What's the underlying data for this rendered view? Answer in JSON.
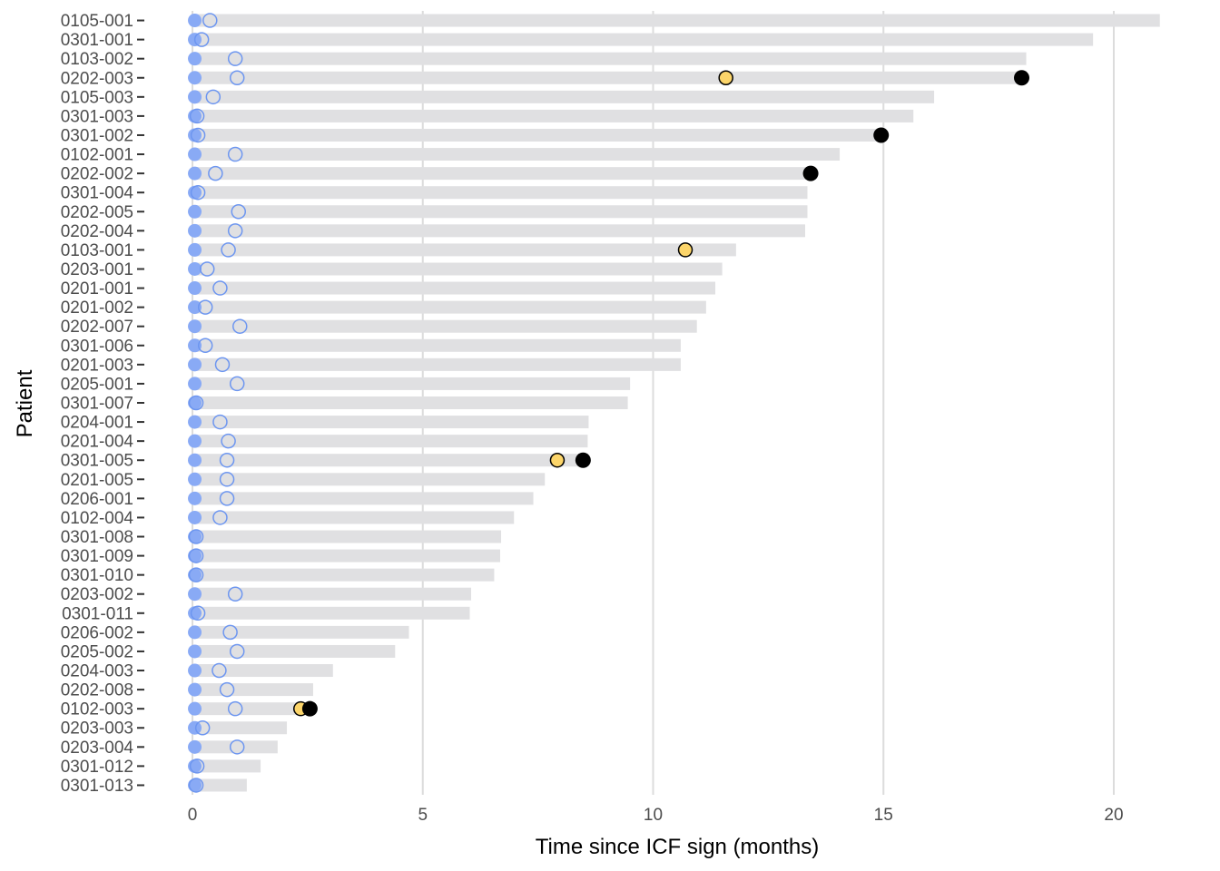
{
  "chart_data": {
    "type": "scatter",
    "xlabel": "Time since ICF sign (months)",
    "ylabel": "Patient",
    "xlim": [
      -1.5,
      22
    ],
    "xticks": [
      0,
      5,
      10,
      15,
      20
    ],
    "grid": "vertical",
    "legend": "none",
    "colors": {
      "bar": "#e0e0e2",
      "grid": "#dcdcdc",
      "start_marker": "#89aaf5",
      "hollow_marker": "#6d96f0",
      "yellow_marker": "#fcd56a",
      "black_marker": "#000000"
    },
    "patients": [
      {
        "id": "0105-001",
        "bar_end": 21.0,
        "start": 0.05,
        "hollow": 0.38,
        "yellow": null,
        "black": null
      },
      {
        "id": "0301-001",
        "bar_end": 19.55,
        "start": 0.05,
        "hollow": 0.2,
        "yellow": null,
        "black": null
      },
      {
        "id": "0103-002",
        "bar_end": 18.1,
        "start": 0.05,
        "hollow": 0.93,
        "yellow": null,
        "black": null
      },
      {
        "id": "0202-003",
        "bar_end": 18.05,
        "start": 0.05,
        "hollow": 0.97,
        "yellow": 11.58,
        "black": 18.0
      },
      {
        "id": "0105-003",
        "bar_end": 16.1,
        "start": 0.05,
        "hollow": 0.45,
        "yellow": null,
        "black": null
      },
      {
        "id": "0301-003",
        "bar_end": 15.65,
        "start": 0.05,
        "hollow": 0.1,
        "yellow": null,
        "black": null
      },
      {
        "id": "0301-002",
        "bar_end": 15.0,
        "start": 0.05,
        "hollow": 0.12,
        "yellow": null,
        "black": 14.95
      },
      {
        "id": "0102-001",
        "bar_end": 14.05,
        "start": 0.05,
        "hollow": 0.93,
        "yellow": null,
        "black": null
      },
      {
        "id": "0202-002",
        "bar_end": 13.45,
        "start": 0.05,
        "hollow": 0.5,
        "yellow": null,
        "black": 13.42
      },
      {
        "id": "0301-004",
        "bar_end": 13.35,
        "start": 0.05,
        "hollow": 0.12,
        "yellow": null,
        "black": null
      },
      {
        "id": "0202-005",
        "bar_end": 13.35,
        "start": 0.05,
        "hollow": 1.0,
        "yellow": null,
        "black": null
      },
      {
        "id": "0202-004",
        "bar_end": 13.3,
        "start": 0.05,
        "hollow": 0.93,
        "yellow": null,
        "black": null
      },
      {
        "id": "0103-001",
        "bar_end": 11.8,
        "start": 0.05,
        "hollow": 0.78,
        "yellow": 10.7,
        "black": null
      },
      {
        "id": "0203-001",
        "bar_end": 11.5,
        "start": 0.05,
        "hollow": 0.32,
        "yellow": null,
        "black": null
      },
      {
        "id": "0201-001",
        "bar_end": 11.35,
        "start": 0.05,
        "hollow": 0.6,
        "yellow": null,
        "black": null
      },
      {
        "id": "0201-002",
        "bar_end": 11.15,
        "start": 0.05,
        "hollow": 0.28,
        "yellow": null,
        "black": null
      },
      {
        "id": "0202-007",
        "bar_end": 10.95,
        "start": 0.05,
        "hollow": 1.03,
        "yellow": null,
        "black": null
      },
      {
        "id": "0301-006",
        "bar_end": 10.6,
        "start": 0.05,
        "hollow": 0.28,
        "yellow": null,
        "black": null
      },
      {
        "id": "0201-003",
        "bar_end": 10.6,
        "start": 0.05,
        "hollow": 0.65,
        "yellow": null,
        "black": null
      },
      {
        "id": "0205-001",
        "bar_end": 9.5,
        "start": 0.05,
        "hollow": 0.97,
        "yellow": null,
        "black": null
      },
      {
        "id": "0301-007",
        "bar_end": 9.45,
        "start": 0.05,
        "hollow": 0.08,
        "yellow": null,
        "black": null
      },
      {
        "id": "0204-001",
        "bar_end": 8.6,
        "start": 0.05,
        "hollow": 0.6,
        "yellow": null,
        "black": null
      },
      {
        "id": "0201-004",
        "bar_end": 8.58,
        "start": 0.05,
        "hollow": 0.78,
        "yellow": null,
        "black": null
      },
      {
        "id": "0301-005",
        "bar_end": 8.5,
        "start": 0.05,
        "hollow": 0.75,
        "yellow": 7.92,
        "black": 8.48
      },
      {
        "id": "0201-005",
        "bar_end": 7.65,
        "start": 0.05,
        "hollow": 0.75,
        "yellow": null,
        "black": null
      },
      {
        "id": "0206-001",
        "bar_end": 7.4,
        "start": 0.05,
        "hollow": 0.75,
        "yellow": null,
        "black": null
      },
      {
        "id": "0102-004",
        "bar_end": 6.98,
        "start": 0.05,
        "hollow": 0.6,
        "yellow": null,
        "black": null
      },
      {
        "id": "0301-008",
        "bar_end": 6.7,
        "start": 0.05,
        "hollow": 0.08,
        "yellow": null,
        "black": null
      },
      {
        "id": "0301-009",
        "bar_end": 6.68,
        "start": 0.05,
        "hollow": 0.08,
        "yellow": null,
        "black": null
      },
      {
        "id": "0301-010",
        "bar_end": 6.55,
        "start": 0.05,
        "hollow": 0.08,
        "yellow": null,
        "black": null
      },
      {
        "id": "0203-002",
        "bar_end": 6.05,
        "start": 0.05,
        "hollow": 0.93,
        "yellow": null,
        "black": null
      },
      {
        "id": "0301-011",
        "bar_end": 6.02,
        "start": 0.05,
        "hollow": 0.12,
        "yellow": null,
        "black": null
      },
      {
        "id": "0206-002",
        "bar_end": 4.7,
        "start": 0.05,
        "hollow": 0.82,
        "yellow": null,
        "black": null
      },
      {
        "id": "0205-002",
        "bar_end": 4.4,
        "start": 0.05,
        "hollow": 0.97,
        "yellow": null,
        "black": null
      },
      {
        "id": "0204-003",
        "bar_end": 3.05,
        "start": 0.05,
        "hollow": 0.58,
        "yellow": null,
        "black": null
      },
      {
        "id": "0202-008",
        "bar_end": 2.62,
        "start": 0.05,
        "hollow": 0.75,
        "yellow": null,
        "black": null
      },
      {
        "id": "0102-003",
        "bar_end": 2.55,
        "start": 0.05,
        "hollow": 0.93,
        "yellow": 2.35,
        "black": 2.55
      },
      {
        "id": "0203-003",
        "bar_end": 2.05,
        "start": 0.05,
        "hollow": 0.22,
        "yellow": null,
        "black": null
      },
      {
        "id": "0203-004",
        "bar_end": 1.85,
        "start": 0.05,
        "hollow": 0.97,
        "yellow": null,
        "black": null
      },
      {
        "id": "0301-012",
        "bar_end": 1.48,
        "start": 0.05,
        "hollow": 0.1,
        "yellow": null,
        "black": null
      },
      {
        "id": "0301-013",
        "bar_end": 1.18,
        "start": 0.05,
        "hollow": 0.08,
        "yellow": null,
        "black": null
      }
    ]
  }
}
